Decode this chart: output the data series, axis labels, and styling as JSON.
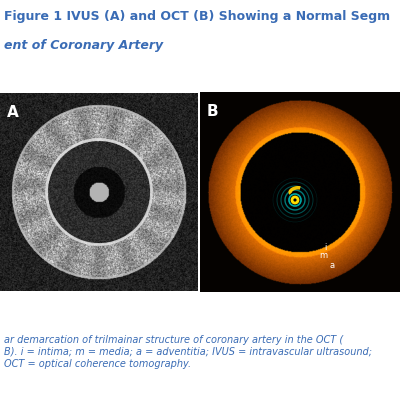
{
  "title_line1": "Figure 1 IVUS (A) and OCT (B) Showing a Normal Segm",
  "title_line2": "ent of Coronary Artery",
  "title_color": "#3a6cb5",
  "title_fontsize": 9,
  "caption_text": "ar demarcation of trilmainar structure of coronary artery in the OCT (\nB). i = intima; m = media; a = adventitia; IVUS = intravascular ultrasound;\nOCT = optical coherence tomography.",
  "caption_fontsize": 7,
  "caption_color": "#3a6cb5",
  "bg_color": "#ffffff",
  "label_A": "A",
  "label_B": "B",
  "label_color": "#ffffff",
  "divider_color": "#4a90d9"
}
